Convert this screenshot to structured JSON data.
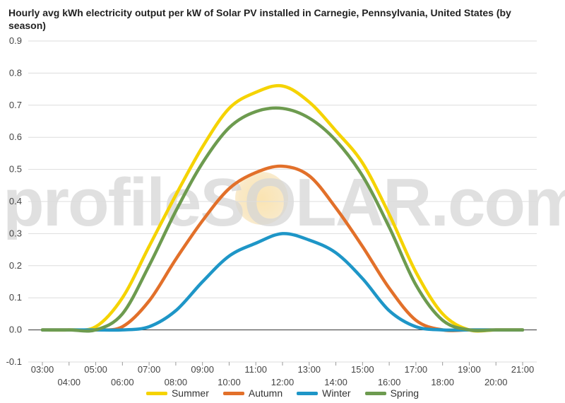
{
  "chart_data": {
    "type": "line",
    "title": "Hourly avg kWh electricity output per kW of Solar PV installed in Carnegie, Pennsylvania, United States (by season)",
    "ylim": [
      -0.1,
      0.9
    ],
    "yticks": [
      "-0.1",
      "0.0",
      "0.1",
      "0.2",
      "0.3",
      "0.4",
      "0.5",
      "0.6",
      "0.7",
      "0.8",
      "0.9"
    ],
    "x": [
      "03:00",
      "04:00",
      "05:00",
      "06:00",
      "07:00",
      "08:00",
      "09:00",
      "10:00",
      "11:00",
      "12:00",
      "13:00",
      "14:00",
      "15:00",
      "16:00",
      "17:00",
      "18:00",
      "19:00",
      "20:00",
      "21:00"
    ],
    "series": [
      {
        "name": "Summer",
        "color": "#f5d300",
        "values": [
          0.0,
          0.0,
          0.01,
          0.1,
          0.26,
          0.42,
          0.57,
          0.69,
          0.74,
          0.76,
          0.71,
          0.62,
          0.52,
          0.36,
          0.18,
          0.05,
          0.0,
          0.0,
          0.0
        ]
      },
      {
        "name": "Autumn",
        "color": "#e2702a",
        "values": [
          0.0,
          0.0,
          0.0,
          0.01,
          0.09,
          0.22,
          0.34,
          0.44,
          0.49,
          0.51,
          0.48,
          0.38,
          0.26,
          0.13,
          0.03,
          0.0,
          0.0,
          0.0,
          0.0
        ]
      },
      {
        "name": "Winter",
        "color": "#1e96c7",
        "values": [
          0.0,
          0.0,
          0.0,
          0.0,
          0.01,
          0.06,
          0.15,
          0.23,
          0.27,
          0.3,
          0.28,
          0.24,
          0.16,
          0.06,
          0.01,
          0.0,
          0.0,
          0.0,
          0.0
        ]
      },
      {
        "name": "Spring",
        "color": "#6d9b4f",
        "values": [
          0.0,
          0.0,
          0.0,
          0.05,
          0.2,
          0.37,
          0.52,
          0.63,
          0.68,
          0.69,
          0.66,
          0.59,
          0.48,
          0.32,
          0.14,
          0.03,
          0.0,
          0.0,
          0.0
        ]
      }
    ],
    "watermark": "profileSOLAR.com",
    "grid": true,
    "legend_position": "bottom"
  }
}
